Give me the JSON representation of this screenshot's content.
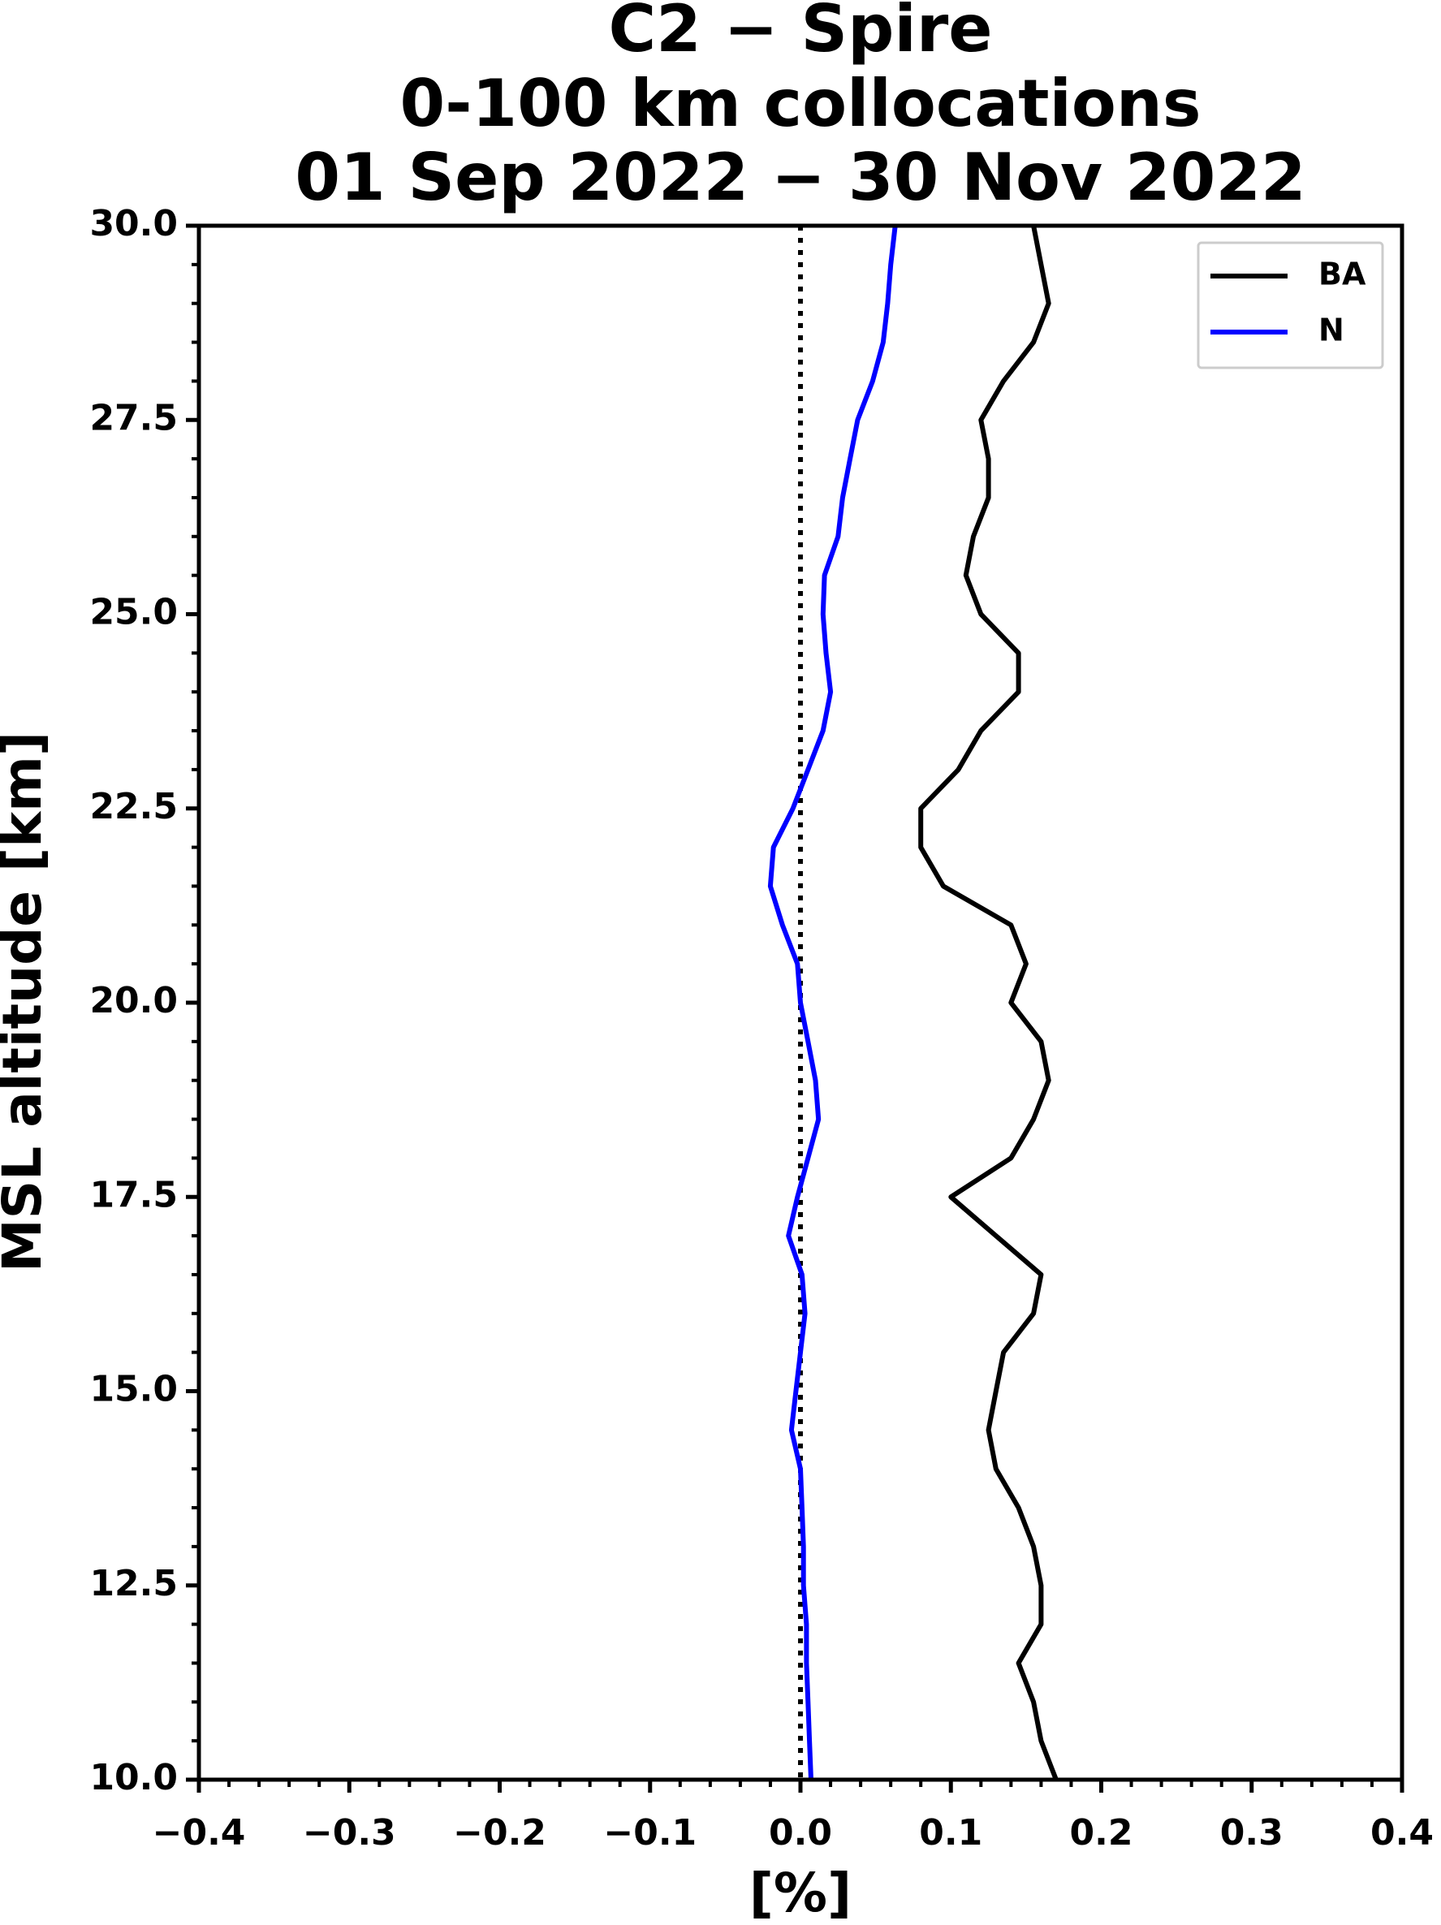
{
  "chart_data": {
    "type": "line",
    "title": [
      "C2 − Spire",
      "0-100 km collocations",
      "01 Sep 2022 − 30 Nov 2022"
    ],
    "xlabel": "[%]",
    "ylabel": "MSL altitude [km]",
    "y": [
      10.0,
      10.5,
      11.0,
      11.5,
      12.0,
      12.5,
      13.0,
      13.5,
      14.0,
      14.5,
      15.0,
      15.5,
      16.0,
      16.5,
      17.0,
      17.5,
      18.0,
      18.5,
      19.0,
      19.5,
      20.0,
      20.5,
      21.0,
      21.5,
      22.0,
      22.5,
      23.0,
      23.5,
      24.0,
      24.5,
      25.0,
      25.5,
      26.0,
      26.5,
      27.0,
      27.5,
      28.0,
      28.5,
      29.0,
      29.5,
      30.0
    ],
    "series": [
      {
        "name": "BA",
        "color": "#000000",
        "values": [
          0.17,
          0.16,
          0.155,
          0.145,
          0.16,
          0.16,
          0.155,
          0.145,
          0.13,
          0.125,
          0.13,
          0.135,
          0.155,
          0.16,
          0.13,
          0.1,
          0.14,
          0.155,
          0.165,
          0.16,
          0.14,
          0.15,
          0.14,
          0.095,
          0.08,
          0.08,
          0.105,
          0.12,
          0.145,
          0.145,
          0.12,
          0.11,
          0.115,
          0.125,
          0.125,
          0.12,
          0.135,
          0.155,
          0.165,
          0.16,
          0.155
        ]
      },
      {
        "name": "N",
        "color": "#0000ff",
        "values": [
          0.007,
          0.006,
          0.005,
          0.004,
          0.004,
          0.002,
          0.002,
          0.001,
          0.0,
          -0.006,
          -0.003,
          0.0,
          0.003,
          0.001,
          -0.008,
          -0.002,
          0.005,
          0.012,
          0.01,
          0.005,
          0.0,
          -0.002,
          -0.012,
          -0.02,
          -0.018,
          -0.005,
          0.005,
          0.015,
          0.02,
          0.017,
          0.015,
          0.016,
          0.025,
          0.028,
          0.033,
          0.038,
          0.048,
          0.055,
          0.058,
          0.06,
          0.063
        ]
      }
    ],
    "xlim": [
      -0.4,
      0.4
    ],
    "xticks": [
      {
        "value": -0.4,
        "label": "−0.4"
      },
      {
        "value": -0.3,
        "label": "−0.3"
      },
      {
        "value": -0.2,
        "label": "−0.2"
      },
      {
        "value": -0.1,
        "label": "−0.1"
      },
      {
        "value": 0,
        "label": "0.0"
      },
      0.1,
      0.2,
      0.3,
      0.4
    ],
    "ylim": [
      10,
      30
    ],
    "yticks": [
      {
        "value": 10,
        "label": "10.0"
      },
      12.5,
      {
        "value": 15,
        "label": "15.0"
      },
      17.5,
      {
        "value": 20,
        "label": "20.0"
      },
      22.5,
      {
        "value": 25,
        "label": "25.0"
      },
      27.5,
      {
        "value": 30,
        "label": "30.0"
      }
    ],
    "reference_line": 0,
    "legend": "upper right"
  }
}
